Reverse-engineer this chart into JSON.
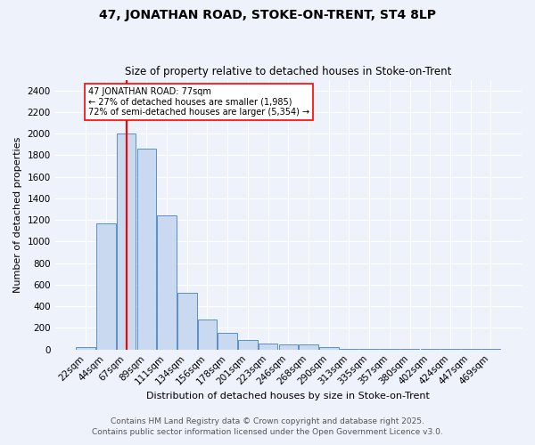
{
  "title1": "47, JONATHAN ROAD, STOKE-ON-TRENT, ST4 8LP",
  "title2": "Size of property relative to detached houses in Stoke-on-Trent",
  "xlabel": "Distribution of detached houses by size in Stoke-on-Trent",
  "ylabel": "Number of detached properties",
  "bar_labels": [
    "22sqm",
    "44sqm",
    "67sqm",
    "89sqm",
    "111sqm",
    "134sqm",
    "156sqm",
    "178sqm",
    "201sqm",
    "223sqm",
    "246sqm",
    "268sqm",
    "290sqm",
    "313sqm",
    "335sqm",
    "357sqm",
    "380sqm",
    "402sqm",
    "424sqm",
    "447sqm",
    "469sqm"
  ],
  "bar_values": [
    25,
    1170,
    2000,
    1860,
    1245,
    525,
    275,
    155,
    90,
    55,
    45,
    45,
    20,
    5,
    5,
    5,
    2,
    2,
    2,
    2,
    10
  ],
  "bar_color": "#c9d9f0",
  "bar_edge_color": "#5b8fc9",
  "vline_x_index": 2,
  "vline_color": "red",
  "annotation_text": "47 JONATHAN ROAD: 77sqm\n← 27% of detached houses are smaller (1,985)\n72% of semi-detached houses are larger (5,354) →",
  "annotation_box_color": "white",
  "annotation_box_edge": "red",
  "ylim": [
    0,
    2500
  ],
  "yticks": [
    0,
    200,
    400,
    600,
    800,
    1000,
    1200,
    1400,
    1600,
    1800,
    2000,
    2200,
    2400
  ],
  "footer1": "Contains HM Land Registry data © Crown copyright and database right 2025.",
  "footer2": "Contains public sector information licensed under the Open Government Licence v3.0.",
  "bg_color": "#eef2fb",
  "plot_bg_color": "#eef2fb",
  "title1_fontsize": 10,
  "title2_fontsize": 8.5,
  "xlabel_fontsize": 8,
  "ylabel_fontsize": 8,
  "tick_fontsize": 7.5,
  "footer_fontsize": 6.5
}
